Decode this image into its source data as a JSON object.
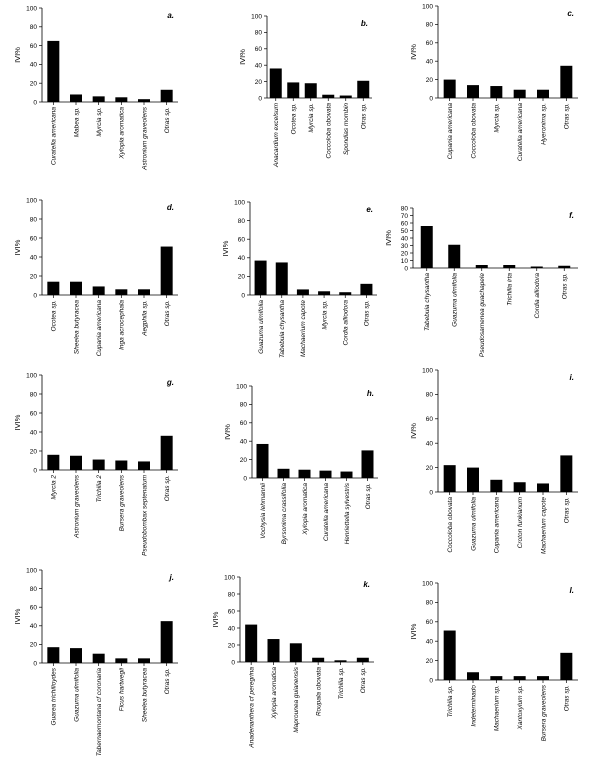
{
  "figure": {
    "y_axis_label": "IVI%"
  },
  "chart_data": [
    {
      "panel": "a.",
      "type": "bar",
      "ylabel": "IVI%",
      "ylim": [
        0,
        100
      ],
      "yticks": [
        0,
        20,
        40,
        60,
        80,
        100
      ],
      "categories": [
        "Curatella americana",
        "Mabea sp.",
        "Myrcia sp.",
        "Xylopia aromatica",
        "Astronium graveolens",
        "Otras sp."
      ],
      "values": [
        65,
        8,
        6,
        5,
        3,
        13
      ]
    },
    {
      "panel": "b.",
      "type": "bar",
      "ylabel": "IVI%",
      "ylim": [
        0,
        100
      ],
      "yticks": [
        0,
        20,
        40,
        60,
        80,
        100
      ],
      "categories": [
        "Anacardium excelsum",
        "Ocotea sp.",
        "Myrcia sp.",
        "Coccoloba obovata",
        "Spondias mombin",
        "Otras sp."
      ],
      "values": [
        36,
        19,
        18,
        4,
        3,
        21
      ]
    },
    {
      "panel": "c.",
      "type": "bar",
      "ylabel": "IVI%",
      "ylim": [
        0,
        100
      ],
      "yticks": [
        0,
        20,
        40,
        60,
        80,
        100
      ],
      "categories": [
        "Cupania americana",
        "Coccoloba obovata",
        "Myrcia sp.",
        "Curatella americana",
        "Hyeronima sp.",
        "Otras sp."
      ],
      "values": [
        20,
        14,
        13,
        9,
        9,
        35
      ]
    },
    {
      "panel": "d.",
      "type": "bar",
      "ylabel": "IVI%",
      "ylim": [
        0,
        100
      ],
      "yticks": [
        0,
        20,
        40,
        60,
        80,
        100
      ],
      "categories": [
        "Ocotea sp.",
        "Sheelea butyracea",
        "Cupania americana",
        "Inga acrocephala",
        "Aegphila sp.",
        "Otras sp."
      ],
      "values": [
        14,
        14,
        9,
        6,
        6,
        51
      ]
    },
    {
      "panel": "e.",
      "type": "bar",
      "ylabel": "IVI%",
      "ylim": [
        0,
        100
      ],
      "yticks": [
        0,
        20,
        40,
        60,
        80,
        100
      ],
      "categories": [
        "Guazuma ulmifolia",
        "Tabebuia chysantha",
        "Machaerium capote",
        "Myrcia sp.",
        "Cordia alliodora",
        "Otras sp."
      ],
      "values": [
        37,
        35,
        6,
        4,
        3,
        12
      ]
    },
    {
      "panel": "f.",
      "type": "bar",
      "ylabel": "IVI%",
      "ylim": [
        0,
        100
      ],
      "yticks": [
        0,
        10,
        20,
        30,
        40,
        50,
        60,
        70,
        80
      ],
      "categories": [
        "Tabebuia chysantha",
        "Guazuma ulmifolia",
        "Pseudosamenea guachapele",
        "Trichilia irta",
        "Cordia alliodora",
        "Otras sp."
      ],
      "values": [
        56,
        31,
        4,
        4,
        2,
        3
      ]
    },
    {
      "panel": "g.",
      "type": "bar",
      "ylabel": "IVI%",
      "ylim": [
        0,
        100
      ],
      "yticks": [
        0,
        20,
        40,
        60,
        80,
        100
      ],
      "categories": [
        "Myrcia 2",
        "Astronium graveolens",
        "Trichilia 2",
        "Bursera graveolens",
        "Pseudobombax septenatum",
        "Otras sp."
      ],
      "values": [
        16,
        15,
        11,
        10,
        9,
        36
      ]
    },
    {
      "panel": "h.",
      "type": "bar",
      "ylabel": "IVI%",
      "ylim": [
        0,
        100
      ],
      "yticks": [
        0,
        20,
        40,
        60,
        80,
        100
      ],
      "categories": [
        "Vochysia lehmannii",
        "Byrsonima crassifolia",
        "Xylopia aromatica",
        "Curatella americana",
        "Henriettella sylvestris",
        "Otras sp."
      ],
      "values": [
        37,
        10,
        9,
        8,
        7,
        30
      ]
    },
    {
      "panel": "i.",
      "type": "bar",
      "ylabel": "IVI%",
      "ylim": [
        0,
        100
      ],
      "yticks": [
        0,
        20,
        40,
        60,
        80,
        100
      ],
      "categories": [
        "Coccoloba obovata",
        "Guazuma ulmifolia",
        "Cupania americana",
        "Croton funkianum",
        "Machaerium capote",
        "Otras sp."
      ],
      "values": [
        22,
        20,
        10,
        8,
        7,
        30
      ]
    },
    {
      "panel": "j.",
      "type": "bar",
      "ylabel": "IVI%",
      "ylim": [
        0,
        100
      ],
      "yticks": [
        0,
        20,
        40,
        60,
        80,
        100
      ],
      "categories": [
        "Guarea trichilioydes",
        "Guazuma ulmifolia",
        "Tabernaemontana cf coronaria",
        "Ficus hartwegii",
        "Sheelea butyracea",
        "Otras sp."
      ],
      "values": [
        17,
        16,
        10,
        5,
        5,
        45
      ]
    },
    {
      "panel": "k.",
      "type": "bar",
      "ylabel": "IVI%",
      "ylim": [
        0,
        100
      ],
      "yticks": [
        0,
        20,
        40,
        60,
        80,
        100
      ],
      "categories": [
        "Anadenanthera cf peregrina",
        "Xylopia aromatica",
        "Maprounea guianensis",
        "Roupala obovata",
        "Trichilia sp.",
        "Otras sp."
      ],
      "values": [
        44,
        27,
        22,
        5,
        2,
        5
      ]
    },
    {
      "panel": "l.",
      "type": "bar",
      "ylabel": "IVI%",
      "ylim": [
        0,
        100
      ],
      "yticks": [
        0,
        20,
        40,
        60,
        80,
        100
      ],
      "categories": [
        "Trichilia sp.",
        "Indeterminado",
        "Machaerium sp.",
        "Xantoxylum sp.",
        "Bursera graveolens",
        "Otras sp."
      ],
      "values": [
        51,
        8,
        4,
        4,
        4,
        28
      ]
    }
  ]
}
